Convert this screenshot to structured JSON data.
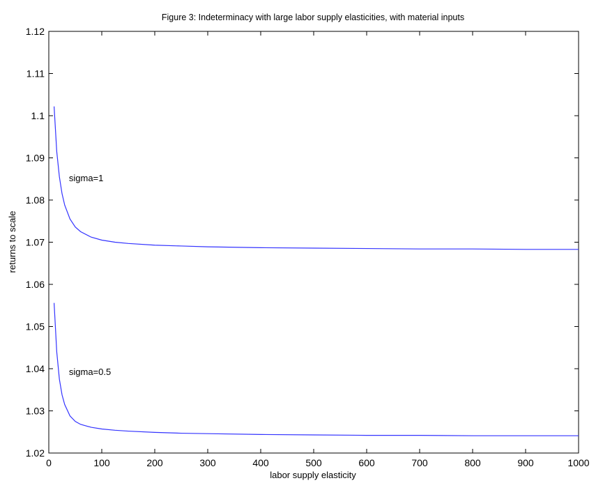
{
  "chart_data": {
    "type": "line",
    "title": "Figure 3: Indeterminacy with large labor supply elasticities, with material inputs",
    "xlabel": "labor supply elasticity",
    "ylabel": "returns to scale",
    "xlim": [
      0,
      1000
    ],
    "ylim": [
      1.02,
      1.12
    ],
    "xticks": [
      0,
      100,
      200,
      300,
      400,
      500,
      600,
      700,
      800,
      900,
      1000
    ],
    "yticks": [
      1.02,
      1.03,
      1.04,
      1.05,
      1.06,
      1.07,
      1.08,
      1.09,
      1.1,
      1.11,
      1.12
    ],
    "xtick_labels": [
      "0",
      "100",
      "200",
      "300",
      "400",
      "500",
      "600",
      "700",
      "800",
      "900",
      "1000"
    ],
    "ytick_labels": [
      "1.02",
      "1.03",
      "1.04",
      "1.05",
      "1.06",
      "1.07",
      "1.08",
      "1.09",
      "1.1",
      "1.11",
      "1.12"
    ],
    "grid": false,
    "line_color": "#3333ff",
    "series": [
      {
        "x": [
          10,
          15,
          20,
          25,
          30,
          40,
          50,
          60,
          80,
          100,
          125,
          150,
          200,
          250,
          300,
          400,
          500,
          600,
          700,
          800,
          900,
          1000
        ],
        "y": [
          1.1022,
          1.0915,
          1.0855,
          1.0815,
          1.0788,
          1.0755,
          1.0736,
          1.0725,
          1.0712,
          1.0705,
          1.07,
          1.0697,
          1.0693,
          1.0691,
          1.0689,
          1.0687,
          1.0686,
          1.0685,
          1.0684,
          1.0684,
          1.0683,
          1.0683
        ]
      },
      {
        "x": [
          10,
          15,
          20,
          25,
          30,
          40,
          50,
          60,
          80,
          100,
          125,
          150,
          200,
          250,
          300,
          400,
          500,
          600,
          700,
          800,
          900,
          1000
        ],
        "y": [
          1.0556,
          1.044,
          1.0375,
          1.0338,
          1.0315,
          1.0288,
          1.0275,
          1.0268,
          1.0261,
          1.0257,
          1.0254,
          1.0252,
          1.0249,
          1.0247,
          1.0246,
          1.0244,
          1.0243,
          1.0242,
          1.0242,
          1.0241,
          1.0241,
          1.0241
        ]
      }
    ],
    "annotations": [
      {
        "text": "sigma=1",
        "x": 38,
        "y": 1.0845
      },
      {
        "text": "sigma=0.5",
        "x": 38,
        "y": 1.0385
      }
    ]
  }
}
